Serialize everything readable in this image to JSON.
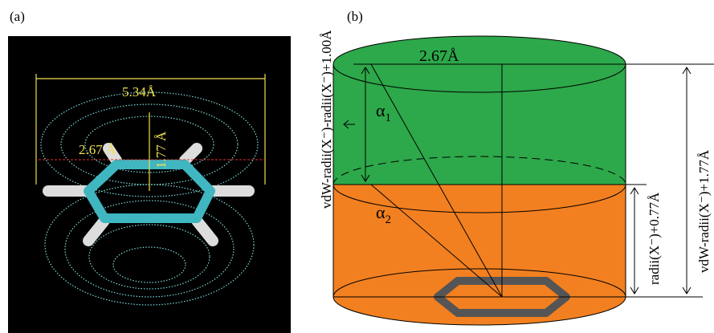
{
  "panel_a": {
    "label": "(a)",
    "width_label": "5.34Å",
    "radius_label": "2.67 Å",
    "height_label": "1.77 Å"
  },
  "panel_b": {
    "label": "(b)",
    "radius_label": "2.67Å",
    "alpha1": {
      "symbol": "α",
      "subscript": "1"
    },
    "alpha2": {
      "symbol": "α",
      "subscript": "2"
    },
    "left_label": "vdW-radii(X⁻)-radii(X⁻)+1.00Å",
    "right_label": "vdW-radii(X⁻)+1.77Å",
    "inner_label": "radii(X⁻)+0.77Å"
  }
}
